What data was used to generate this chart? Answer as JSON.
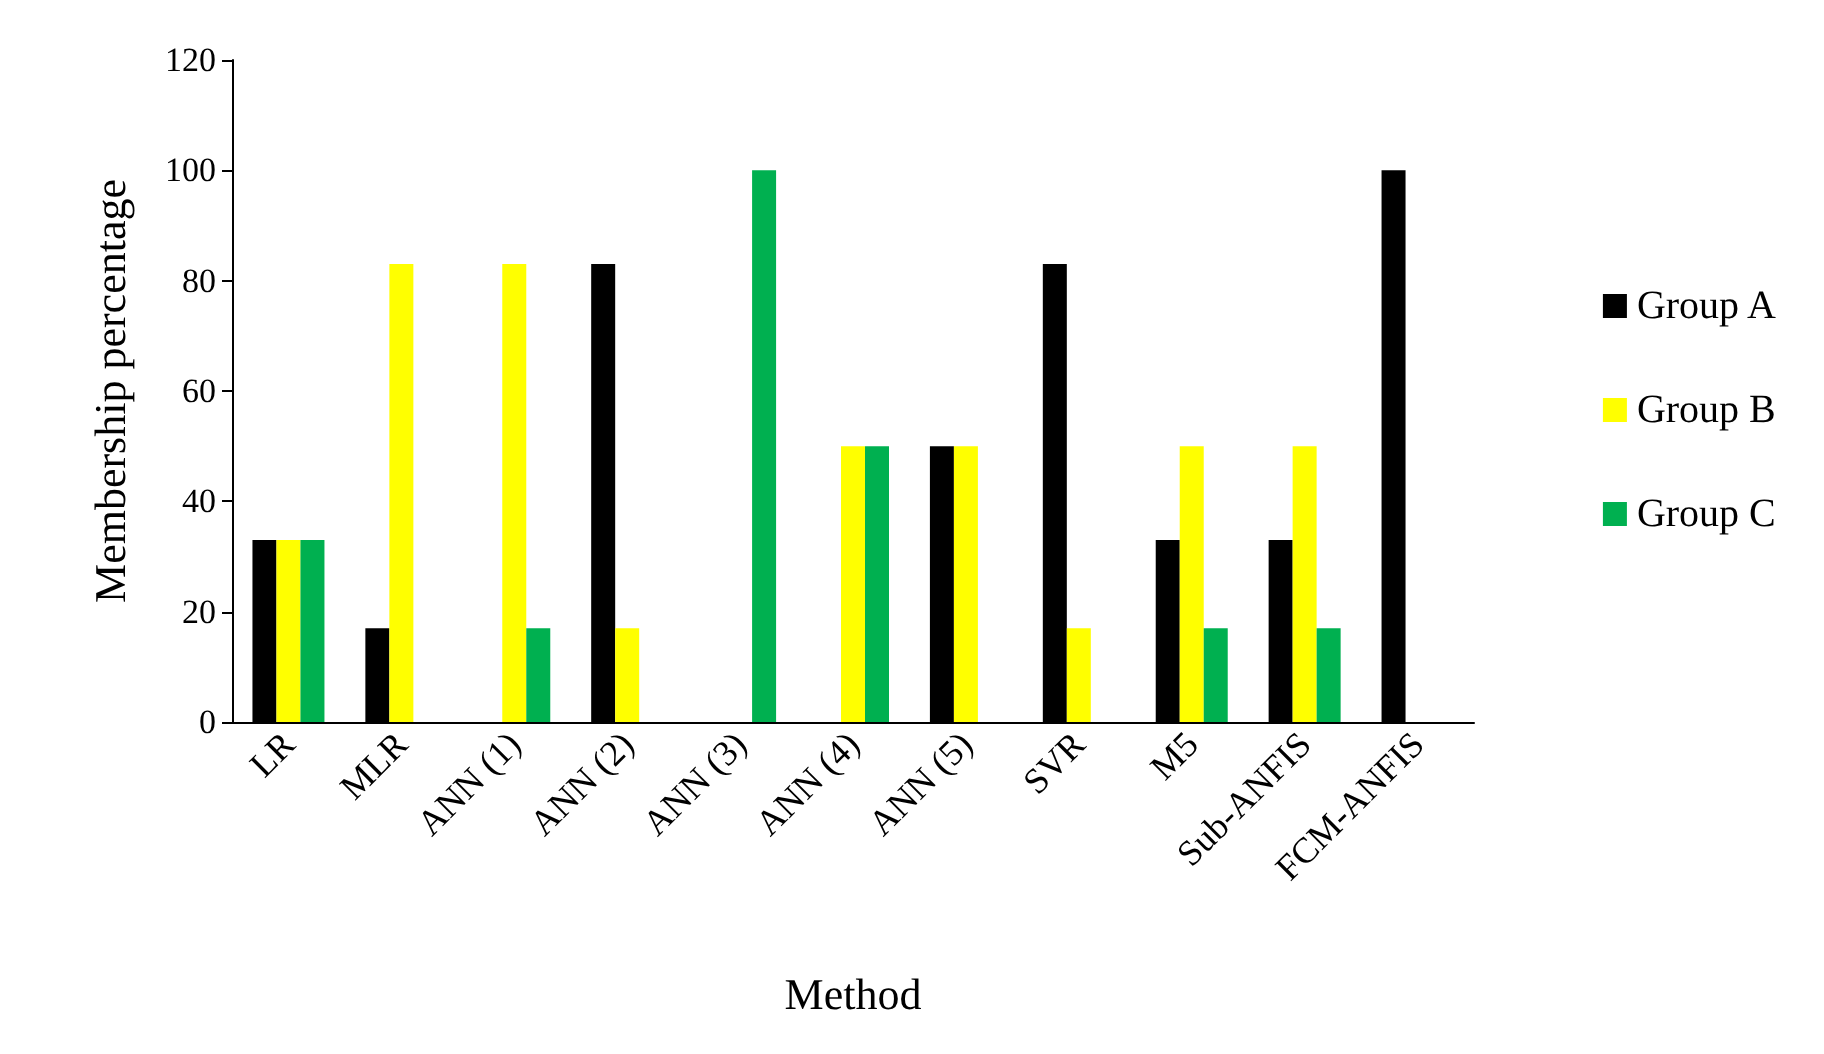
{
  "chart_data": {
    "type": "bar",
    "xlabel": "Method",
    "ylabel": "Membership percentage",
    "categories": [
      "LR",
      "MLR",
      "ANN (1)",
      "ANN (2)",
      "ANN (3)",
      "ANN (4)",
      "ANN (5)",
      "SVR",
      "M5",
      "Sub-ANFIS",
      "FCM-ANFIS"
    ],
    "series": [
      {
        "name": "Group A",
        "color": "#000000",
        "values": [
          33,
          17,
          0,
          83,
          0,
          0,
          50,
          83,
          33,
          33,
          100
        ]
      },
      {
        "name": "Group B",
        "color": "#ffff00",
        "values": [
          33,
          83,
          83,
          17,
          0,
          50,
          50,
          17,
          50,
          50,
          0
        ]
      },
      {
        "name": "Group C",
        "color": "#00b050",
        "values": [
          33,
          0,
          17,
          0,
          100,
          50,
          0,
          0,
          17,
          17,
          0
        ]
      }
    ],
    "ylim": [
      0,
      120
    ],
    "yticks": [
      0,
      20,
      40,
      60,
      80,
      100,
      120
    ],
    "grid": false,
    "legend": "right"
  }
}
